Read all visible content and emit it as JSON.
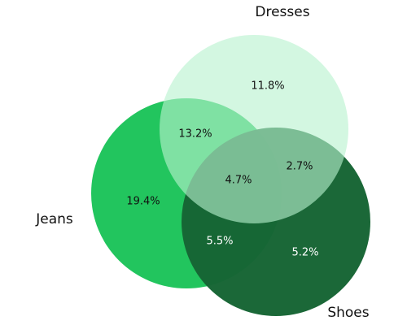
{
  "sets": [
    {
      "name": "Dresses",
      "color": "#b8f2cf"
    },
    {
      "name": "Jeans",
      "color": "#22c55e"
    },
    {
      "name": "Shoes",
      "color": "#166534"
    }
  ],
  "regions": {
    "dresses_only": "11.8%",
    "dresses_jeans": "13.2%",
    "jeans_only": "19.4%",
    "all_three": "4.7%",
    "dresses_shoes": "2.7%",
    "jeans_shoes": "5.5%",
    "shoes_only": "5.2%"
  }
}
